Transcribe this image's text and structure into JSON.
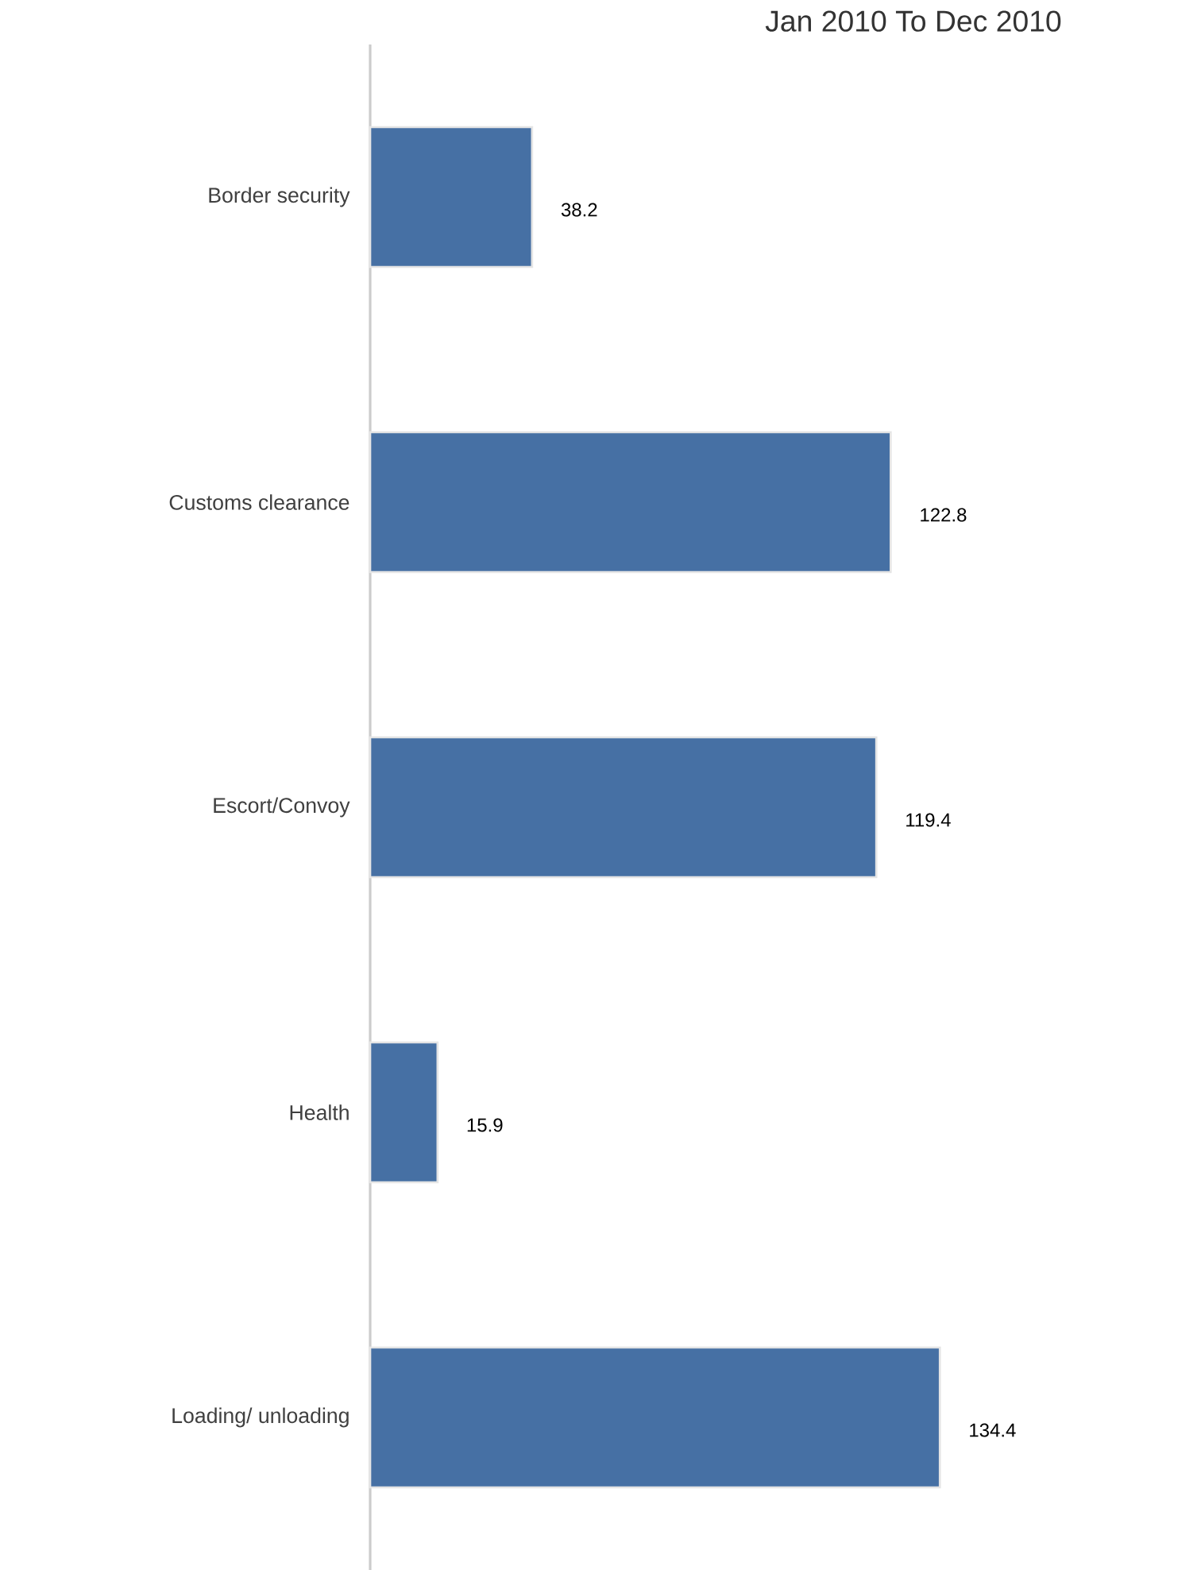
{
  "chart_data": {
    "type": "bar",
    "orientation": "horizontal",
    "title": "Jan 2010 To Dec 2010",
    "categories": [
      "Border security",
      "Customs clearance",
      "Escort/Convoy",
      "Health",
      "Loading/ unloading"
    ],
    "values": [
      38.2,
      122.8,
      119.4,
      15.9,
      134.4
    ],
    "color": "#4670a4",
    "tick_labels": "y",
    "data_labels": true
  }
}
